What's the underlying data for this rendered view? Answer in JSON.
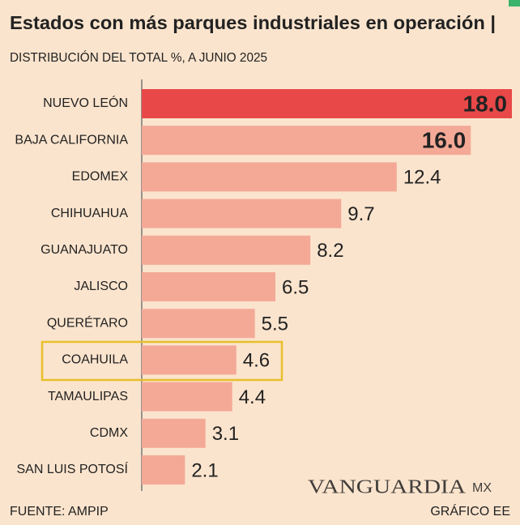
{
  "chart_data": {
    "type": "hbar",
    "title": "Estados con más parques industriales en operación |",
    "subtitle": "DISTRIBUCIÓN DEL TOTAL %, A JUNIO 2025",
    "categories": [
      "NUEVO LEÓN",
      "BAJA CALIFORNIA",
      "EDOMEX",
      "CHIHUAHUA",
      "GUANAJUATO",
      "JALISCO",
      "QUERÉTARO",
      "COAHUILA",
      "TAMAULIPAS",
      "CDMX",
      "SAN LUIS POTOSÍ"
    ],
    "values": [
      18,
      16,
      12.4,
      9.7,
      8.2,
      6.5,
      5.5,
      4.6,
      4.4,
      3.1,
      2.1
    ],
    "value_labels": [
      "18.0",
      "16.0",
      "12.4",
      "9.7",
      "8.2",
      "6.5",
      "5.5",
      "4.6",
      "4.4",
      "3.1",
      "2.1"
    ],
    "colors": [
      "#e84848",
      "#f4a997",
      "#f4a997",
      "#f4a997",
      "#f4a997",
      "#f4a997",
      "#f4a997",
      "#f4a997",
      "#f4a997",
      "#f4a997",
      "#f4a997"
    ],
    "xlim": [
      0,
      18
    ],
    "source": "FUENTE: AMPIP",
    "credit": "GRÁFICO EE",
    "watermark": {
      "name": "VANGUARDIA",
      "suffix": "MX"
    }
  }
}
